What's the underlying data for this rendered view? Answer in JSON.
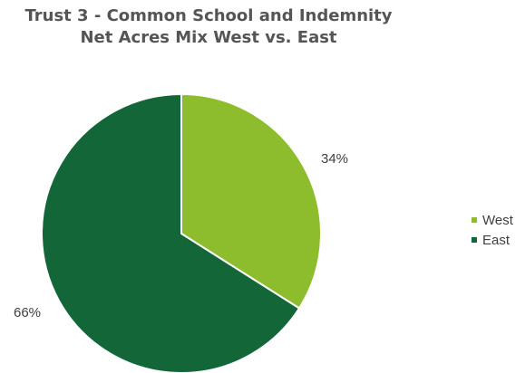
{
  "chart_data": {
    "type": "pie",
    "title_lines": [
      "Trust 3 - Common School and Indemnity",
      "Net Acres Mix West vs. East"
    ],
    "categories": [
      "West",
      "East"
    ],
    "values": [
      34,
      66
    ],
    "value_labels": [
      "34%",
      "66%"
    ],
    "colors": [
      "#8dbd2d",
      "#136637"
    ],
    "legend_position": "right",
    "start_angle_deg": 0,
    "direction": "clockwise"
  }
}
